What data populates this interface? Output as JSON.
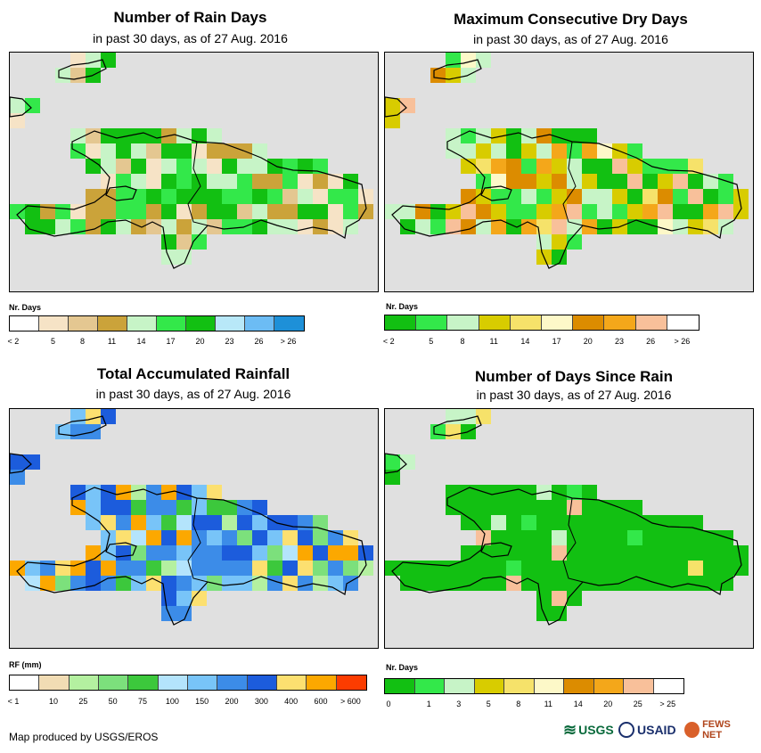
{
  "panels": [
    {
      "title": "Number of Rain Days",
      "subtitle": "in past 30 days, as of 27 Aug. 2016",
      "legend_title": "Nr. Days",
      "legend_labels": [
        "< 2",
        "5",
        "8",
        "11",
        "14",
        "17",
        "20",
        "23",
        "26",
        "> 26"
      ],
      "legend_colors": [
        "#ffffff",
        "#f6e3c6",
        "#e4c791",
        "#cba33a",
        "#c7f4c7",
        "#33e84a",
        "#12c012",
        "#b8e8f8",
        "#6cbcf4",
        "#1e90d8"
      ]
    },
    {
      "title": "Maximum Consecutive Dry Days",
      "subtitle": "in past 30 days, as of 27 Aug. 2016",
      "legend_title": "Nr. Days",
      "legend_labels": [
        "< 2",
        "5",
        "8",
        "11",
        "14",
        "17",
        "20",
        "23",
        "26",
        "> 26"
      ],
      "legend_colors": [
        "#12c012",
        "#33e84a",
        "#c7f4c7",
        "#d8cc00",
        "#f6e26a",
        "#fdf8c8",
        "#dc8c00",
        "#f4a71a",
        "#f8c09a",
        "#ffffff"
      ]
    },
    {
      "title": "Total Accumulated Rainfall",
      "subtitle": "in past 30 days, as of 27 Aug. 2016",
      "legend_title": "RF (mm)",
      "legend_labels": [
        "< 1",
        "10",
        "25",
        "50",
        "75",
        "100",
        "150",
        "200",
        "300",
        "400",
        "600",
        "> 600"
      ],
      "legend_colors": [
        "#ffffff",
        "#f1dcb4",
        "#b4f0a0",
        "#7ce07c",
        "#3cc83c",
        "#b4e4fc",
        "#78c4f8",
        "#3c8ce8",
        "#1c5cdc",
        "#fce070",
        "#fca800",
        "#fc3c00"
      ]
    },
    {
      "title": "Number of Days Since Rain",
      "subtitle": "in past 30 days, as of 27 Aug. 2016",
      "legend_title": "Nr. Days",
      "legend_labels": [
        "0",
        "1",
        "3",
        "5",
        "8",
        "11",
        "14",
        "20",
        "25",
        "> 25"
      ],
      "legend_colors": [
        "#12c012",
        "#33e84a",
        "#c7f4c7",
        "#d8cc00",
        "#f6e26a",
        "#fdf8c8",
        "#dc8c00",
        "#f4a71a",
        "#f8c09a",
        "#ffffff"
      ]
    }
  ],
  "footer": {
    "credit": "Map produced by USGS/EROS"
  },
  "logos": {
    "usgs": "USGS",
    "usaid": "USAID",
    "fewsnet": "FEWS NET"
  }
}
